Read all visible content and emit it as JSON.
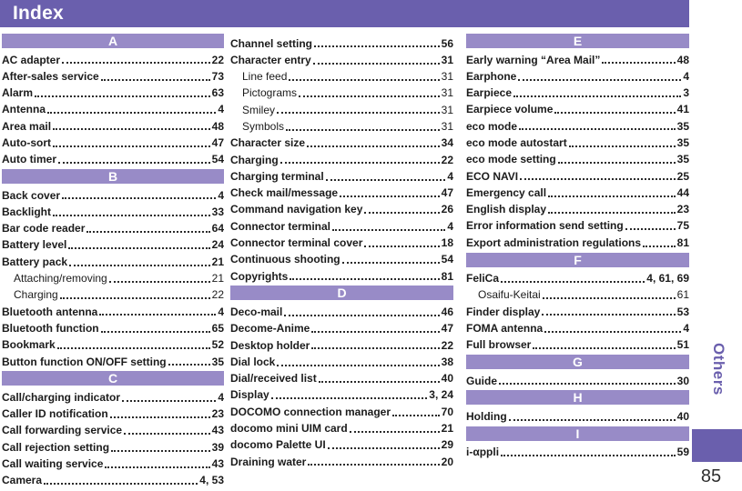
{
  "header": {
    "title": "Index"
  },
  "sidebar": {
    "section_label": "Others",
    "page_number": "85"
  },
  "colors": {
    "header_bar": "#6a5fad",
    "section_bar": "#988bc7",
    "sidebar_tab": "#6a5fad",
    "text": "#1b1b1b"
  },
  "columns": [
    {
      "blocks": [
        {
          "type": "section",
          "letter": "A"
        },
        {
          "type": "entry",
          "label": "AC adapter",
          "page": "22"
        },
        {
          "type": "entry",
          "label": "After-sales service",
          "page": "73"
        },
        {
          "type": "entry",
          "label": "Alarm",
          "page": "63"
        },
        {
          "type": "entry",
          "label": "Antenna",
          "page": "4"
        },
        {
          "type": "entry",
          "label": "Area mail",
          "page": "48"
        },
        {
          "type": "entry",
          "label": "Auto-sort",
          "page": "47"
        },
        {
          "type": "entry",
          "label": "Auto timer",
          "page": "54"
        },
        {
          "type": "section",
          "letter": "B"
        },
        {
          "type": "entry",
          "label": "Back cover",
          "page": "4"
        },
        {
          "type": "entry",
          "label": "Backlight",
          "page": "33"
        },
        {
          "type": "entry",
          "label": "Bar code reader",
          "page": "64"
        },
        {
          "type": "entry",
          "label": "Battery level",
          "page": "24"
        },
        {
          "type": "entry",
          "label": "Battery pack",
          "page": "21"
        },
        {
          "type": "entry",
          "label": "Attaching/removing",
          "page": "21",
          "sub": true
        },
        {
          "type": "entry",
          "label": "Charging",
          "page": "22",
          "sub": true
        },
        {
          "type": "entry",
          "label": "Bluetooth antenna",
          "page": "4"
        },
        {
          "type": "entry",
          "label": "Bluetooth function",
          "page": "65"
        },
        {
          "type": "entry",
          "label": "Bookmark",
          "page": "52"
        },
        {
          "type": "entry",
          "label": "Button function ON/OFF setting",
          "page": "35"
        },
        {
          "type": "section",
          "letter": "C"
        },
        {
          "type": "entry",
          "label": "Call/charging indicator",
          "page": "4"
        },
        {
          "type": "entry",
          "label": "Caller ID notification",
          "page": "23"
        },
        {
          "type": "entry",
          "label": "Call forwarding service",
          "page": "43"
        },
        {
          "type": "entry",
          "label": "Call rejection setting",
          "page": "39"
        },
        {
          "type": "entry",
          "label": "Call waiting service",
          "page": "43"
        },
        {
          "type": "entry",
          "label": "Camera",
          "page": "4, 53"
        }
      ]
    },
    {
      "blocks": [
        {
          "type": "entry",
          "label": "Channel setting",
          "page": "56"
        },
        {
          "type": "entry",
          "label": "Character entry",
          "page": "31"
        },
        {
          "type": "entry",
          "label": "Line feed",
          "page": "31",
          "sub": true
        },
        {
          "type": "entry",
          "label": "Pictograms",
          "page": "31",
          "sub": true
        },
        {
          "type": "entry",
          "label": "Smiley",
          "page": "31",
          "sub": true
        },
        {
          "type": "entry",
          "label": "Symbols",
          "page": "31",
          "sub": true
        },
        {
          "type": "entry",
          "label": "Character size",
          "page": "34"
        },
        {
          "type": "entry",
          "label": "Charging",
          "page": "22"
        },
        {
          "type": "entry",
          "label": "Charging terminal",
          "page": "4"
        },
        {
          "type": "entry",
          "label": "Check mail/message",
          "page": "47"
        },
        {
          "type": "entry",
          "label": "Command navigation key",
          "page": "26"
        },
        {
          "type": "entry",
          "label": "Connector terminal",
          "page": "4"
        },
        {
          "type": "entry",
          "label": "Connector terminal cover",
          "page": "18"
        },
        {
          "type": "entry",
          "label": "Continuous shooting",
          "page": "54"
        },
        {
          "type": "entry",
          "label": "Copyrights",
          "page": "81"
        },
        {
          "type": "section",
          "letter": "D"
        },
        {
          "type": "entry",
          "label": "Deco-mail",
          "page": "46"
        },
        {
          "type": "entry",
          "label": "Decome-Anime",
          "page": "47"
        },
        {
          "type": "entry",
          "label": "Desktop holder",
          "page": "22"
        },
        {
          "type": "entry",
          "label": "Dial lock",
          "page": "38"
        },
        {
          "type": "entry",
          "label": "Dial/received list",
          "page": "40"
        },
        {
          "type": "entry",
          "label": "Display",
          "page": "3, 24"
        },
        {
          "type": "entry",
          "label": "DOCOMO connection manager",
          "page": "70"
        },
        {
          "type": "entry",
          "label": "docomo mini UIM card",
          "page": "21"
        },
        {
          "type": "entry",
          "label": "docomo Palette UI",
          "page": "29"
        },
        {
          "type": "entry",
          "label": "Draining water",
          "page": "20"
        }
      ]
    },
    {
      "blocks": [
        {
          "type": "section",
          "letter": "E"
        },
        {
          "type": "entry",
          "label": "Early warning “Area Mail”",
          "page": "48"
        },
        {
          "type": "entry",
          "label": "Earphone",
          "page": "4"
        },
        {
          "type": "entry",
          "label": "Earpiece",
          "page": "3"
        },
        {
          "type": "entry",
          "label": "Earpiece volume",
          "page": "41"
        },
        {
          "type": "entry",
          "label": "eco mode",
          "page": "35"
        },
        {
          "type": "entry",
          "label": "eco mode autostart",
          "page": "35"
        },
        {
          "type": "entry",
          "label": "eco mode setting",
          "page": "35"
        },
        {
          "type": "entry",
          "label": "ECO NAVI",
          "page": "25"
        },
        {
          "type": "entry",
          "label": "Emergency call",
          "page": "44"
        },
        {
          "type": "entry",
          "label": "English display",
          "page": "23"
        },
        {
          "type": "entry",
          "label": "Error information send setting",
          "page": "75"
        },
        {
          "type": "entry",
          "label": "Export administration regulations",
          "page": "81"
        },
        {
          "type": "section",
          "letter": "F"
        },
        {
          "type": "entry",
          "label": "FeliCa",
          "page": "4, 61, 69"
        },
        {
          "type": "entry",
          "label": "Osaifu-Keitai",
          "page": "61",
          "sub": true
        },
        {
          "type": "entry",
          "label": "Finder display",
          "page": "53"
        },
        {
          "type": "entry",
          "label": "FOMA antenna",
          "page": "4"
        },
        {
          "type": "entry",
          "label": "Full browser",
          "page": "51"
        },
        {
          "type": "section",
          "letter": "G"
        },
        {
          "type": "entry",
          "label": "Guide",
          "page": "30"
        },
        {
          "type": "section",
          "letter": "H"
        },
        {
          "type": "entry",
          "label": "Holding",
          "page": "40"
        },
        {
          "type": "section",
          "letter": "I"
        },
        {
          "type": "entry",
          "label": "i-αppli",
          "page": "59"
        }
      ]
    }
  ]
}
